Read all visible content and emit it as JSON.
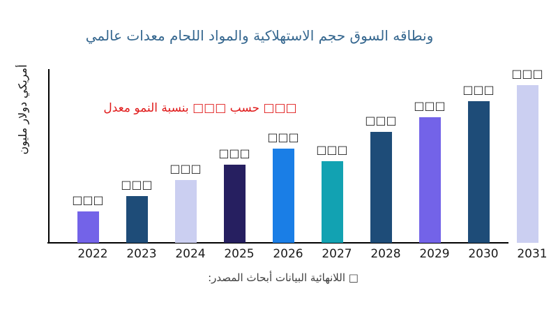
{
  "page": {
    "background": "#ffffff",
    "axis_spine_color": "#000000"
  },
  "title": {
    "text": "عالمي معدات اللحام والمواد الاستهلاكية حجم السوق ونطاقه",
    "color": "#35678f"
  },
  "annotation": {
    "text": "معدل النمو بنسبة □□□ حسب □□□",
    "color": "#e01a1a"
  },
  "axes": {
    "y_label": "مليون دولار أمريكي",
    "x_tick_color": "#1a1a1a"
  },
  "source_note": {
    "text": "المصدر: أبحاث البيانات اللانهائية □",
    "color": "#3d3d3d"
  },
  "chart_data": {
    "type": "bar",
    "title": "عالمي معدات اللحام والمواد الاستهلاكية حجم السوق ونطاقه",
    "categories": [
      "2022",
      "2023",
      "2024",
      "2025",
      "2026",
      "2027",
      "2028",
      "2029",
      "2030",
      "2031"
    ],
    "values": [
      45,
      67,
      90,
      112,
      135,
      117,
      159,
      180,
      203,
      226
    ],
    "values_note": "value axis has no tick labels; values are relative magnitudes estimated from bar pixel heights — printed figures are redacted as tofu boxes",
    "value_labels": [
      "□□□",
      "□□□",
      "□□□",
      "□□□",
      "□□□",
      "□□□",
      "□□□",
      "□□□",
      "□□□",
      "□□□"
    ],
    "bar_colors": [
      "#7363e8",
      "#1e4c78",
      "#cbcff1",
      "#261f60",
      "#1a7ee6",
      "#12a2b2",
      "#1e4c78",
      "#7363e8",
      "#1e4c78",
      "#cbcff1"
    ],
    "xlabel": "",
    "ylabel": "مليون دولار أمريكي",
    "ylim": [
      0,
      250
    ],
    "grid": false,
    "legend": false,
    "annotation": "معدل النمو بنسبة □□□ حسب □□□",
    "source": "المصدر: أبحاث البيانات اللانهائية □"
  }
}
